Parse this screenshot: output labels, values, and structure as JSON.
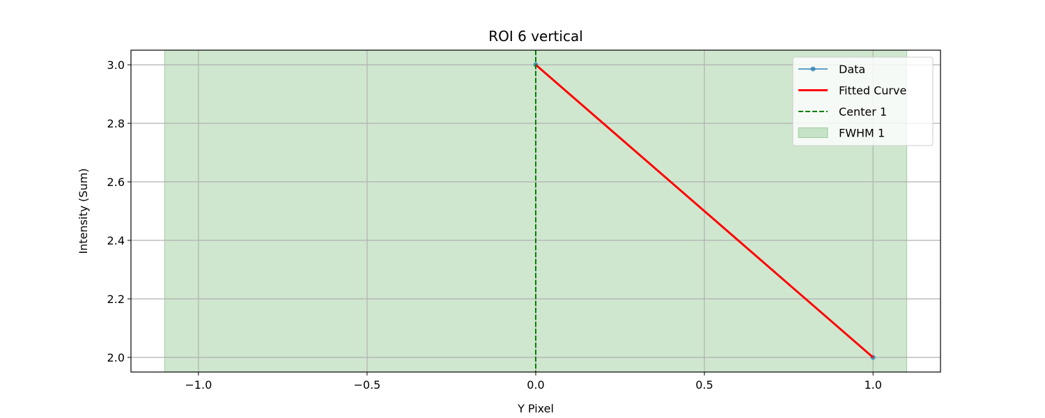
{
  "chart_data": {
    "type": "line",
    "title": "ROI 6 vertical",
    "xlabel": "Y Pixel",
    "ylabel": "Intensity (Sum)",
    "xlim": [
      -1.2,
      1.2
    ],
    "ylim": [
      1.95,
      3.05
    ],
    "xticks": [
      -1.0,
      -0.5,
      0.0,
      0.5,
      1.0
    ],
    "xtick_labels": [
      "−1.0",
      "−0.5",
      "0.0",
      "0.5",
      "1.0"
    ],
    "yticks": [
      2.0,
      2.2,
      2.4,
      2.6,
      2.8,
      3.0
    ],
    "ytick_labels": [
      "2.0",
      "2.2",
      "2.4",
      "2.6",
      "2.8",
      "3.0"
    ],
    "grid": true,
    "legend_position": "top-right",
    "series": [
      {
        "name": "Data",
        "kind": "line-marker",
        "color": "#1f77b4",
        "x": [
          0.0,
          1.0
        ],
        "y": [
          3.0,
          2.0
        ]
      },
      {
        "name": "Fitted Curve",
        "kind": "line",
        "color": "#ff0000",
        "x": [
          0.0,
          1.0
        ],
        "y": [
          3.0,
          2.0
        ]
      },
      {
        "name": "Center 1",
        "kind": "vline-dashed",
        "color": "#008000",
        "x": 0.0
      },
      {
        "name": "FWHM 1",
        "kind": "span",
        "color": "#008000",
        "alpha": 0.19,
        "x_range": [
          -1.1,
          1.1
        ]
      }
    ]
  }
}
